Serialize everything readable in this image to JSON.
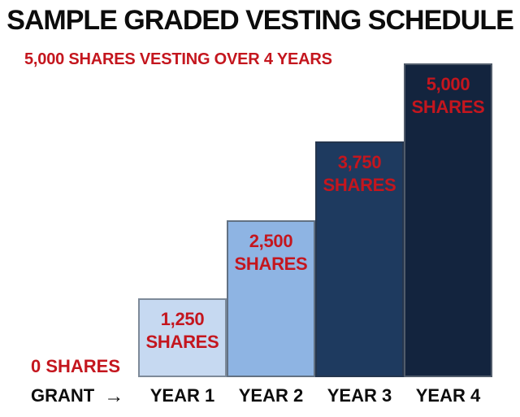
{
  "page": {
    "title": "SAMPLE GRADED VESTING SCHEDULE",
    "subtitle": "5,000 SHARES VESTING OVER 4 YEARS"
  },
  "colors": {
    "background": "#ffffff",
    "title_text": "#0c0c0c",
    "accent_red": "#c4161e",
    "axis_text": "#0d0d0d"
  },
  "axis": {
    "zero_label": "0 SHARES",
    "grant_label": "GRANT",
    "arrow_symbol": "→"
  },
  "bars": [
    {
      "year_label": "YEAR 1",
      "value": 1250,
      "value_text": "1,250",
      "unit_text": "SHARES",
      "fill": "#c6d9f1",
      "border": "#7d8a99"
    },
    {
      "year_label": "YEAR 2",
      "value": 2500,
      "value_text": "2,500",
      "unit_text": "SHARES",
      "fill": "#8eb4e3",
      "border": "#627183"
    },
    {
      "year_label": "YEAR 3",
      "value": 3750,
      "value_text": "3,750",
      "unit_text": "SHARES",
      "fill": "#1e3a5f",
      "border": "#25364e"
    },
    {
      "year_label": "YEAR 4",
      "value": 5000,
      "value_text": "5,000",
      "unit_text": "SHARES",
      "fill": "#13243e",
      "border": "#515c6b"
    }
  ],
  "chart_data": {
    "type": "bar",
    "title": "SAMPLE GRADED VESTING SCHEDULE",
    "subtitle": "5,000 SHARES VESTING OVER 4 YEARS",
    "categories": [
      "GRANT",
      "YEAR 1",
      "YEAR 2",
      "YEAR 3",
      "YEAR 4"
    ],
    "values": [
      0,
      1250,
      2500,
      3750,
      5000
    ],
    "point_labels": [
      "0 SHARES",
      "1,250 SHARES",
      "2,500 SHARES",
      "3,750 SHARES",
      "5,000 SHARES"
    ],
    "bar_colors": [
      "none",
      "#c6d9f1",
      "#8eb4e3",
      "#1e3a5f",
      "#13243e"
    ],
    "label_color": "#c4161e",
    "xlabel": "",
    "ylabel": "",
    "ylim": [
      0,
      5000
    ],
    "grid": false,
    "legend": "none",
    "axes_drawn": false
  }
}
